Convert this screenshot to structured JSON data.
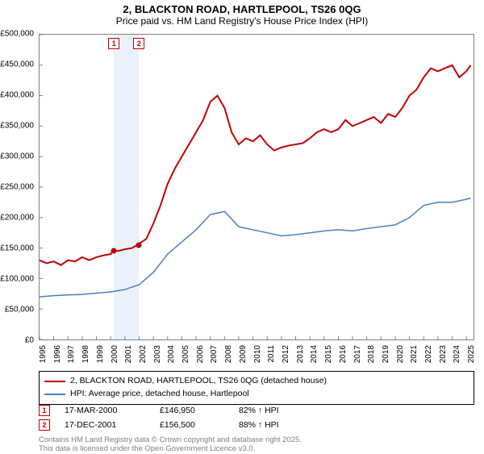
{
  "title": {
    "line1": "2, BLACKTON ROAD, HARTLEPOOL, TS26 0QG",
    "line2": "Price paid vs. HM Land Registry's House Price Index (HPI)"
  },
  "chart": {
    "type": "line",
    "background_color": "#ffffff",
    "border_color": "#7f7f7f",
    "y_axis": {
      "min": 0,
      "max": 500000,
      "ticks": [
        0,
        50000,
        100000,
        150000,
        200000,
        250000,
        300000,
        350000,
        400000,
        450000,
        500000
      ],
      "labels": [
        "£0",
        "£50,000",
        "£100,000",
        "£150,000",
        "£200,000",
        "£250,000",
        "£300,000",
        "£350,000",
        "£400,000",
        "£450,000",
        "£500,000"
      ],
      "fontsize": 10
    },
    "x_axis": {
      "min": 1995,
      "max": 2025.5,
      "ticks": [
        1995,
        1996,
        1997,
        1998,
        1999,
        2000,
        2001,
        2002,
        2003,
        2004,
        2005,
        2006,
        2007,
        2008,
        2009,
        2010,
        2011,
        2012,
        2013,
        2014,
        2015,
        2016,
        2017,
        2018,
        2019,
        2020,
        2021,
        2022,
        2023,
        2024,
        2025
      ],
      "labels": [
        "1995",
        "1996",
        "1997",
        "1998",
        "1999",
        "2000",
        "2001",
        "2002",
        "2003",
        "2004",
        "2005",
        "2006",
        "2007",
        "2008",
        "2009",
        "2010",
        "2011",
        "2012",
        "2013",
        "2014",
        "2015",
        "2016",
        "2017",
        "2018",
        "2019",
        "2020",
        "2021",
        "2022",
        "2023",
        "2024",
        "2025"
      ],
      "fontsize": 10
    },
    "highlight_band": {
      "x_start": 2000.21,
      "x_end": 2001.96,
      "color": "#eaf1fb"
    },
    "series": [
      {
        "name": "price_paid",
        "label": "2, BLACKTON ROAD, HARTLEPOOL, TS26 0QG (detached house)",
        "color": "#c00000",
        "line_width": 2,
        "data": [
          [
            1995,
            130000
          ],
          [
            1995.5,
            125000
          ],
          [
            1996,
            128000
          ],
          [
            1996.5,
            122000
          ],
          [
            1997,
            130000
          ],
          [
            1997.5,
            128000
          ],
          [
            1998,
            135000
          ],
          [
            1998.5,
            130000
          ],
          [
            1999,
            135000
          ],
          [
            1999.5,
            138000
          ],
          [
            2000,
            140000
          ],
          [
            2000.21,
            146950
          ],
          [
            2000.5,
            145000
          ],
          [
            2001,
            148000
          ],
          [
            2001.5,
            150000
          ],
          [
            2001.96,
            156500
          ],
          [
            2002,
            157000
          ],
          [
            2002.5,
            165000
          ],
          [
            2003,
            190000
          ],
          [
            2003.5,
            220000
          ],
          [
            2004,
            255000
          ],
          [
            2004.5,
            280000
          ],
          [
            2005,
            300000
          ],
          [
            2005.5,
            320000
          ],
          [
            2006,
            340000
          ],
          [
            2006.5,
            360000
          ],
          [
            2007,
            390000
          ],
          [
            2007.5,
            400000
          ],
          [
            2008,
            380000
          ],
          [
            2008.5,
            340000
          ],
          [
            2009,
            320000
          ],
          [
            2009.5,
            330000
          ],
          [
            2010,
            325000
          ],
          [
            2010.5,
            335000
          ],
          [
            2011,
            320000
          ],
          [
            2011.5,
            310000
          ],
          [
            2012,
            315000
          ],
          [
            2012.5,
            318000
          ],
          [
            2013,
            320000
          ],
          [
            2013.5,
            322000
          ],
          [
            2014,
            330000
          ],
          [
            2014.5,
            340000
          ],
          [
            2015,
            345000
          ],
          [
            2015.5,
            340000
          ],
          [
            2016,
            345000
          ],
          [
            2016.5,
            360000
          ],
          [
            2017,
            350000
          ],
          [
            2017.5,
            355000
          ],
          [
            2018,
            360000
          ],
          [
            2018.5,
            365000
          ],
          [
            2019,
            355000
          ],
          [
            2019.5,
            370000
          ],
          [
            2020,
            365000
          ],
          [
            2020.5,
            380000
          ],
          [
            2021,
            400000
          ],
          [
            2021.5,
            410000
          ],
          [
            2022,
            430000
          ],
          [
            2022.5,
            445000
          ],
          [
            2023,
            440000
          ],
          [
            2023.5,
            445000
          ],
          [
            2024,
            450000
          ],
          [
            2024.5,
            430000
          ],
          [
            2025,
            440000
          ],
          [
            2025.3,
            450000
          ]
        ]
      },
      {
        "name": "hpi",
        "label": "HPI: Average price, detached house, Hartlepool",
        "color": "#4a7fc4",
        "line_width": 1.5,
        "data": [
          [
            1995,
            70000
          ],
          [
            1996,
            72000
          ],
          [
            1997,
            73000
          ],
          [
            1998,
            74000
          ],
          [
            1999,
            76000
          ],
          [
            2000,
            78000
          ],
          [
            2001,
            82000
          ],
          [
            2002,
            90000
          ],
          [
            2003,
            110000
          ],
          [
            2004,
            140000
          ],
          [
            2005,
            160000
          ],
          [
            2006,
            180000
          ],
          [
            2007,
            205000
          ],
          [
            2008,
            210000
          ],
          [
            2009,
            185000
          ],
          [
            2010,
            180000
          ],
          [
            2011,
            175000
          ],
          [
            2012,
            170000
          ],
          [
            2013,
            172000
          ],
          [
            2014,
            175000
          ],
          [
            2015,
            178000
          ],
          [
            2016,
            180000
          ],
          [
            2017,
            178000
          ],
          [
            2018,
            182000
          ],
          [
            2019,
            185000
          ],
          [
            2020,
            188000
          ],
          [
            2021,
            200000
          ],
          [
            2022,
            220000
          ],
          [
            2023,
            225000
          ],
          [
            2024,
            225000
          ],
          [
            2025,
            230000
          ],
          [
            2025.3,
            232000
          ]
        ]
      }
    ],
    "markers": [
      {
        "num": "1",
        "x": 2000.21,
        "y": 146950,
        "dot_color": "#c00000"
      },
      {
        "num": "2",
        "x": 2001.96,
        "y": 156500,
        "dot_color": "#c00000"
      }
    ]
  },
  "legend": {
    "items": [
      {
        "color": "#c00000",
        "label": "2, BLACKTON ROAD, HARTLEPOOL, TS26 0QG (detached house)"
      },
      {
        "color": "#4a7fc4",
        "label": "HPI: Average price, detached house, Hartlepool"
      }
    ]
  },
  "marker_table": {
    "rows": [
      {
        "num": "1",
        "date": "17-MAR-2000",
        "price": "£146,950",
        "hpi": "82% ↑ HPI"
      },
      {
        "num": "2",
        "date": "17-DEC-2001",
        "price": "£156,500",
        "hpi": "88% ↑ HPI"
      }
    ]
  },
  "footer": {
    "line1": "Contains HM Land Registry data © Crown copyright and database right 2025.",
    "line2": "This data is licensed under the Open Government Licence v3.0."
  }
}
